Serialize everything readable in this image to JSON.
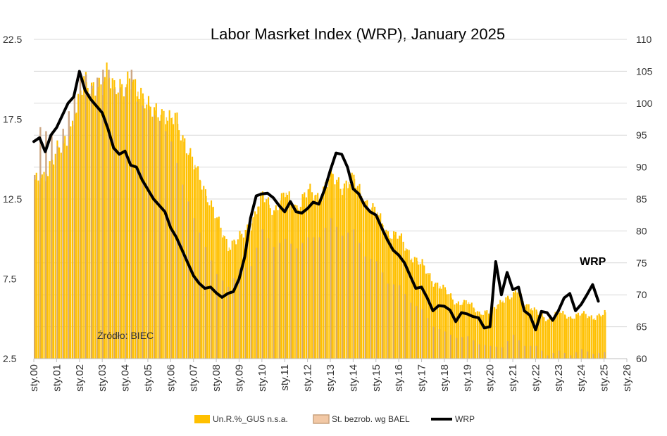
{
  "chart_data": {
    "type": "bar",
    "title": "Labor Masrket Index (WRP), January 2025",
    "source_note": "Źródło: BIEC",
    "series_label": "WRP",
    "left_axis": {
      "ylim": [
        2.5,
        22.5
      ],
      "ticks": [
        "2.5",
        "7.5",
        "12.5",
        "17.5",
        "22.5"
      ]
    },
    "right_axis": {
      "ylim": [
        60,
        110
      ],
      "ticks": [
        "60",
        "65",
        "70",
        "75",
        "80",
        "85",
        "90",
        "95",
        "100",
        "105",
        "110"
      ]
    },
    "x_ticks": [
      "sty.00",
      "sty.01",
      "sty.02",
      "sty.03",
      "sty.04",
      "sty.05",
      "sty.06",
      "sty.07",
      "sty.08",
      "sty.09",
      "sty.10",
      "sty.11",
      "sty.12",
      "sty.13",
      "sty.14",
      "sty.15",
      "sty.16",
      "sty.17",
      "sty.18",
      "sty.19",
      "sty.20",
      "sty.21",
      "sty.22",
      "sty.23",
      "sty.24",
      "sty.25",
      "sty.26"
    ],
    "x_range": [
      2000,
      2026
    ],
    "grid": "horizontal",
    "legend_position": "bottom",
    "colors": {
      "gus": "#FFC000",
      "bael": "#C9A27E",
      "wrp": "#000000",
      "grid": "#D9D9D9"
    },
    "legend": [
      {
        "name": "Un.R.%_GUS n.s.a.",
        "kind": "bar",
        "color": "#FFC000"
      },
      {
        "name": "St. bezrob. wg BAEL",
        "kind": "bar",
        "color": "#C9A27E"
      },
      {
        "name": "WRP",
        "kind": "line",
        "color": "#000000"
      }
    ],
    "series": [
      {
        "name": "Un.R.%_GUS n.s.a.",
        "axis": "left",
        "points": [
          [
            2000.0,
            13.7
          ],
          [
            2000.5,
            13.9
          ],
          [
            2001.0,
            15.7
          ],
          [
            2001.5,
            16.2
          ],
          [
            2002.0,
            19.0
          ],
          [
            2002.15,
            20.1
          ],
          [
            2002.5,
            19.4
          ],
          [
            2003.0,
            19.6
          ],
          [
            2003.15,
            20.5
          ],
          [
            2003.5,
            19.5
          ],
          [
            2004.0,
            19.5
          ],
          [
            2004.15,
            20.2
          ],
          [
            2004.5,
            19.3
          ],
          [
            2005.0,
            18.4
          ],
          [
            2005.5,
            17.8
          ],
          [
            2006.0,
            17.5
          ],
          [
            2006.15,
            17.9
          ],
          [
            2006.5,
            16.2
          ],
          [
            2007.0,
            14.8
          ],
          [
            2007.5,
            12.8
          ],
          [
            2008.0,
            11.4
          ],
          [
            2008.5,
            9.4
          ],
          [
            2009.0,
            10.2
          ],
          [
            2009.5,
            10.8
          ],
          [
            2010.0,
            12.9
          ],
          [
            2010.5,
            11.6
          ],
          [
            2011.0,
            13.0
          ],
          [
            2011.5,
            11.8
          ],
          [
            2012.0,
            13.2
          ],
          [
            2012.5,
            12.4
          ],
          [
            2013.0,
            14.2
          ],
          [
            2013.5,
            13.1
          ],
          [
            2014.0,
            13.9
          ],
          [
            2014.5,
            12.2
          ],
          [
            2015.0,
            11.8
          ],
          [
            2015.5,
            10.2
          ],
          [
            2016.0,
            10.3
          ],
          [
            2016.5,
            8.8
          ],
          [
            2017.0,
            8.5
          ],
          [
            2017.5,
            7.2
          ],
          [
            2018.0,
            6.9
          ],
          [
            2018.5,
            5.9
          ],
          [
            2019.0,
            6.1
          ],
          [
            2019.5,
            5.3
          ],
          [
            2020.0,
            5.5
          ],
          [
            2020.5,
            6.1
          ],
          [
            2021.0,
            6.5
          ],
          [
            2021.15,
            6.9
          ],
          [
            2021.5,
            5.9
          ],
          [
            2022.0,
            5.5
          ],
          [
            2022.5,
            4.9
          ],
          [
            2023.0,
            5.5
          ],
          [
            2023.5,
            5.0
          ],
          [
            2024.0,
            5.4
          ],
          [
            2024.5,
            5.0
          ],
          [
            2025.0,
            5.4
          ]
        ]
      },
      {
        "name": "St. bezrob. wg BAEL",
        "axis": "left",
        "points": [
          [
            2000.0,
            14.0
          ],
          [
            2000.25,
            17.0
          ],
          [
            2000.75,
            16.5
          ],
          [
            2001.0,
            15.8
          ],
          [
            2001.5,
            18.0
          ],
          [
            2002.0,
            20.0
          ],
          [
            2002.25,
            20.3
          ],
          [
            2002.5,
            19.6
          ],
          [
            2003.0,
            20.6
          ],
          [
            2003.25,
            20.6
          ],
          [
            2003.5,
            19.4
          ],
          [
            2004.0,
            19.5
          ],
          [
            2004.25,
            20.6
          ],
          [
            2004.5,
            18.6
          ],
          [
            2005.0,
            18.1
          ],
          [
            2005.5,
            17.4
          ],
          [
            2006.0,
            16.1
          ],
          [
            2006.5,
            13.4
          ],
          [
            2007.0,
            11.3
          ],
          [
            2007.5,
            9.5
          ],
          [
            2008.0,
            7.8
          ],
          [
            2008.5,
            7.0
          ],
          [
            2009.0,
            8.1
          ],
          [
            2009.5,
            8.3
          ],
          [
            2010.0,
            10.6
          ],
          [
            2010.5,
            9.5
          ],
          [
            2011.0,
            10.0
          ],
          [
            2011.5,
            9.4
          ],
          [
            2012.0,
            10.1
          ],
          [
            2012.5,
            10.1
          ],
          [
            2013.0,
            11.3
          ],
          [
            2013.5,
            10.2
          ],
          [
            2014.0,
            10.6
          ],
          [
            2014.5,
            8.9
          ],
          [
            2015.0,
            8.6
          ],
          [
            2015.5,
            7.2
          ],
          [
            2016.0,
            7.1
          ],
          [
            2016.5,
            6.0
          ],
          [
            2017.0,
            5.6
          ],
          [
            2017.5,
            4.5
          ],
          [
            2018.0,
            4.2
          ],
          [
            2018.5,
            3.8
          ],
          [
            2019.0,
            3.9
          ],
          [
            2019.5,
            3.4
          ],
          [
            2020.0,
            3.3
          ],
          [
            2020.5,
            3.2
          ],
          [
            2021.0,
            4.0
          ],
          [
            2021.5,
            3.3
          ],
          [
            2022.0,
            3.3
          ],
          [
            2022.5,
            2.7
          ],
          [
            2023.0,
            3.0
          ],
          [
            2023.5,
            2.7
          ],
          [
            2024.0,
            3.1
          ],
          [
            2024.5,
            2.8
          ],
          [
            2025.0,
            2.9
          ]
        ]
      },
      {
        "name": "WRP",
        "axis": "right",
        "points": [
          [
            2000.0,
            94
          ],
          [
            2000.25,
            94.6
          ],
          [
            2000.5,
            92.4
          ],
          [
            2000.75,
            95
          ],
          [
            2001.0,
            96.2
          ],
          [
            2001.5,
            100
          ],
          [
            2001.75,
            101
          ],
          [
            2002.0,
            105
          ],
          [
            2002.25,
            102
          ],
          [
            2002.5,
            100.6
          ],
          [
            2003.0,
            98.5
          ],
          [
            2003.25,
            96
          ],
          [
            2003.5,
            93
          ],
          [
            2003.75,
            92
          ],
          [
            2004.0,
            92.5
          ],
          [
            2004.25,
            90.3
          ],
          [
            2004.5,
            90
          ],
          [
            2004.75,
            88
          ],
          [
            2005.0,
            86.5
          ],
          [
            2005.25,
            85
          ],
          [
            2005.5,
            84
          ],
          [
            2005.75,
            83
          ],
          [
            2006.0,
            80.5
          ],
          [
            2006.25,
            79
          ],
          [
            2006.5,
            77
          ],
          [
            2006.75,
            75
          ],
          [
            2007.0,
            73
          ],
          [
            2007.25,
            71.8
          ],
          [
            2007.5,
            71
          ],
          [
            2007.75,
            71.2
          ],
          [
            2008.0,
            70.3
          ],
          [
            2008.25,
            69.6
          ],
          [
            2008.5,
            70.2
          ],
          [
            2008.75,
            70.5
          ],
          [
            2009.0,
            72.5
          ],
          [
            2009.25,
            76
          ],
          [
            2009.5,
            82
          ],
          [
            2009.75,
            85.5
          ],
          [
            2010.0,
            85.8
          ],
          [
            2010.25,
            85.9
          ],
          [
            2010.5,
            85.2
          ],
          [
            2010.75,
            84
          ],
          [
            2011.0,
            83
          ],
          [
            2011.25,
            84.6
          ],
          [
            2011.5,
            83
          ],
          [
            2011.75,
            82.8
          ],
          [
            2012.0,
            83.5
          ],
          [
            2012.25,
            84.5
          ],
          [
            2012.5,
            84.2
          ],
          [
            2012.75,
            86.5
          ],
          [
            2013.0,
            89.5
          ],
          [
            2013.25,
            92.2
          ],
          [
            2013.5,
            92
          ],
          [
            2013.75,
            90
          ],
          [
            2014.0,
            86.6
          ],
          [
            2014.25,
            85.8
          ],
          [
            2014.5,
            84
          ],
          [
            2014.75,
            83
          ],
          [
            2015.0,
            82.5
          ],
          [
            2015.25,
            80.5
          ],
          [
            2015.5,
            78.6
          ],
          [
            2015.75,
            77
          ],
          [
            2016.0,
            76.2
          ],
          [
            2016.25,
            75
          ],
          [
            2016.5,
            73
          ],
          [
            2016.75,
            71
          ],
          [
            2017.0,
            71.2
          ],
          [
            2017.25,
            69.5
          ],
          [
            2017.5,
            67.5
          ],
          [
            2017.75,
            68.3
          ],
          [
            2018.0,
            68.2
          ],
          [
            2018.25,
            67.6
          ],
          [
            2018.5,
            65.8
          ],
          [
            2018.75,
            67.2
          ],
          [
            2019.0,
            67.0
          ],
          [
            2019.25,
            66.6
          ],
          [
            2019.5,
            66.4
          ],
          [
            2019.75,
            64.8
          ],
          [
            2020.0,
            65.0
          ],
          [
            2020.25,
            75.2
          ],
          [
            2020.5,
            70.0
          ],
          [
            2020.75,
            73.5
          ],
          [
            2021.0,
            70.8
          ],
          [
            2021.25,
            71.2
          ],
          [
            2021.5,
            67.5
          ],
          [
            2021.75,
            66.8
          ],
          [
            2022.0,
            64.5
          ],
          [
            2022.25,
            67.4
          ],
          [
            2022.5,
            67.2
          ],
          [
            2022.75,
            66.0
          ],
          [
            2023.0,
            67.5
          ],
          [
            2023.25,
            69.5
          ],
          [
            2023.5,
            70.2
          ],
          [
            2023.75,
            67.5
          ],
          [
            2024.0,
            68.5
          ],
          [
            2024.25,
            70.0
          ],
          [
            2024.5,
            71.6
          ],
          [
            2024.75,
            69.0
          ]
        ]
      }
    ]
  }
}
